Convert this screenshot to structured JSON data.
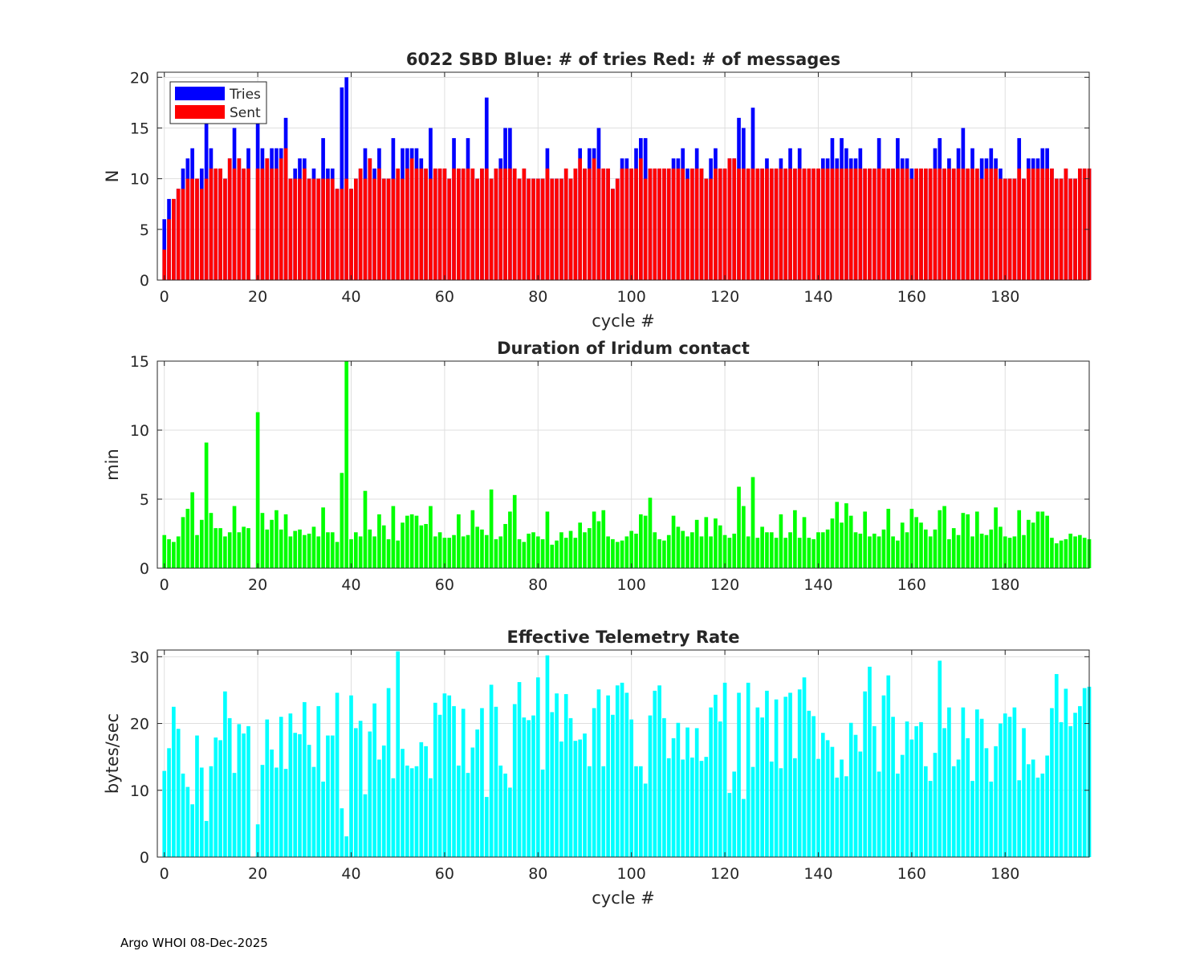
{
  "footer": "Argo WHOI 08-Dec-2025",
  "chart_data": [
    {
      "type": "bar",
      "title": "6022 SBD  Blue: # of tries   Red: # of messages",
      "xlabel": "cycle #",
      "ylabel": "N",
      "xlim": [
        -1.5,
        198
      ],
      "ylim": [
        0,
        20.5
      ],
      "xticks": [
        0,
        20,
        40,
        60,
        80,
        100,
        120,
        140,
        160,
        180
      ],
      "yticks": [
        0,
        5,
        10,
        15,
        20
      ],
      "grid": true,
      "legend": "top-left",
      "x_start": 0,
      "series": [
        {
          "name": "Tries",
          "color": "#0000ff",
          "values": [
            6,
            8,
            8,
            9,
            11,
            12,
            13,
            10,
            11,
            16,
            13,
            11,
            11,
            10,
            12,
            15,
            12,
            11,
            13,
            0,
            16,
            13,
            12,
            13,
            13,
            13,
            16,
            10,
            11,
            12,
            12,
            10,
            11,
            10,
            14,
            11,
            11,
            9,
            19,
            20,
            9,
            10,
            11,
            13,
            12,
            11,
            13,
            10,
            10,
            14,
            10,
            13,
            13,
            13,
            13,
            12,
            11,
            15,
            11,
            11,
            11,
            10,
            14,
            11,
            11,
            14,
            11,
            10,
            11,
            18,
            10,
            11,
            12,
            15,
            15,
            11,
            10,
            11,
            10,
            10,
            10,
            10,
            13,
            10,
            10,
            10,
            11,
            10,
            11,
            13,
            11,
            13,
            13,
            15,
            11,
            11,
            9,
            10,
            12,
            12,
            11,
            13,
            14,
            14,
            11,
            11,
            11,
            11,
            11,
            12,
            12,
            13,
            11,
            11,
            13,
            11,
            10,
            12,
            13,
            11,
            11,
            12,
            12,
            16,
            15,
            11,
            17,
            11,
            11,
            12,
            11,
            11,
            12,
            11,
            13,
            11,
            13,
            11,
            11,
            11,
            11,
            12,
            12,
            14,
            12,
            14,
            13,
            12,
            12,
            13,
            11,
            11,
            11,
            14,
            11,
            11,
            11,
            14,
            12,
            12,
            11,
            11,
            11,
            11,
            11,
            13,
            14,
            11,
            12,
            11,
            13,
            15,
            11,
            13,
            11,
            12,
            12,
            13,
            12,
            11,
            10,
            10,
            10,
            14,
            10,
            12,
            12,
            12,
            13,
            13,
            11,
            10,
            10,
            11,
            10,
            10,
            11,
            11,
            11
          ]
        },
        {
          "name": "Sent",
          "color": "#ff0000",
          "values": [
            3,
            6,
            8,
            9,
            9,
            10,
            10,
            10,
            9,
            10,
            11,
            11,
            11,
            10,
            12,
            11,
            12,
            11,
            11,
            0,
            11,
            11,
            12,
            11,
            11,
            12,
            13,
            10,
            10,
            10,
            11,
            10,
            10,
            10,
            10,
            10,
            10,
            9,
            9,
            10,
            9,
            10,
            11,
            10,
            12,
            10,
            11,
            10,
            10,
            10,
            11,
            10,
            11,
            12,
            11,
            11,
            11,
            10,
            11,
            11,
            11,
            10,
            11,
            11,
            11,
            11,
            11,
            10,
            11,
            11,
            10,
            11,
            11,
            11,
            11,
            11,
            10,
            11,
            10,
            10,
            10,
            10,
            11,
            10,
            10,
            10,
            11,
            10,
            11,
            12,
            11,
            11,
            12,
            11,
            11,
            11,
            9,
            10,
            11,
            11,
            11,
            11,
            12,
            10,
            11,
            11,
            11,
            11,
            11,
            11,
            11,
            11,
            10,
            11,
            11,
            11,
            10,
            10,
            11,
            11,
            11,
            12,
            12,
            11,
            11,
            11,
            11,
            11,
            11,
            11,
            11,
            11,
            11,
            11,
            11,
            11,
            11,
            11,
            11,
            11,
            11,
            11,
            11,
            11,
            11,
            11,
            11,
            11,
            11,
            11,
            11,
            11,
            11,
            11,
            11,
            11,
            11,
            11,
            11,
            11,
            10,
            11,
            11,
            11,
            11,
            11,
            11,
            11,
            11,
            11,
            11,
            11,
            11,
            11,
            11,
            10,
            11,
            11,
            11,
            10,
            10,
            10,
            10,
            11,
            10,
            11,
            11,
            11,
            11,
            11,
            11,
            10,
            10,
            11,
            10,
            10,
            11,
            11,
            11
          ]
        }
      ]
    },
    {
      "type": "bar",
      "title": "Duration of Iridum contact",
      "xlabel": "",
      "ylabel": "min",
      "xlim": [
        -1.5,
        198
      ],
      "ylim": [
        0,
        15
      ],
      "xticks": [
        0,
        20,
        40,
        60,
        80,
        100,
        120,
        140,
        160,
        180
      ],
      "yticks": [
        0,
        5,
        10,
        15
      ],
      "grid": true,
      "x_start": 0,
      "series": [
        {
          "name": "duration",
          "color": "#00ff00",
          "values": [
            2.4,
            2.1,
            1.9,
            2.3,
            3.7,
            4.3,
            5.5,
            2.4,
            3.5,
            9.1,
            4.0,
            2.9,
            2.9,
            2.3,
            2.6,
            4.5,
            2.6,
            3.0,
            2.9,
            0,
            11.3,
            4.0,
            2.8,
            3.5,
            4.2,
            2.8,
            3.9,
            2.3,
            2.7,
            2.8,
            2.4,
            2.5,
            3.0,
            2.3,
            4.4,
            2.6,
            2.6,
            1.9,
            6.9,
            15.0,
            2.1,
            2.6,
            2.3,
            5.6,
            2.8,
            2.3,
            3.9,
            3.1,
            2.1,
            4.5,
            2.0,
            3.3,
            3.8,
            3.9,
            3.8,
            3.1,
            3.2,
            4.5,
            2.3,
            2.6,
            2.2,
            2.2,
            2.4,
            3.9,
            2.3,
            2.4,
            4.2,
            3.0,
            2.8,
            2.4,
            5.7,
            2.1,
            2.3,
            3.2,
            4.1,
            5.3,
            2.1,
            1.9,
            2.5,
            2.6,
            2.3,
            2.1,
            4.1,
            1.7,
            2.0,
            2.6,
            2.2,
            2.7,
            2.2,
            3.3,
            2.6,
            2.9,
            4.1,
            3.4,
            4.2,
            2.3,
            2.1,
            1.9,
            2.0,
            2.3,
            2.7,
            2.5,
            3.9,
            3.8,
            5.1,
            2.6,
            2.1,
            2.0,
            2.4,
            3.8,
            3.0,
            2.7,
            2.3,
            2.6,
            3.5,
            2.3,
            3.7,
            2.3,
            3.6,
            3.1,
            2.4,
            2.2,
            2.5,
            5.9,
            4.5,
            2.3,
            6.6,
            2.2,
            3.0,
            2.6,
            2.6,
            2.2,
            3.9,
            2.2,
            2.6,
            4.2,
            2.2,
            3.7,
            2.2,
            2.1,
            2.6,
            2.6,
            2.8,
            3.6,
            4.8,
            3.3,
            4.7,
            3.8,
            2.6,
            2.5,
            4.1,
            2.3,
            2.5,
            2.3,
            2.8,
            4.3,
            2.3,
            2.0,
            3.3,
            2.6,
            4.3,
            3.7,
            3.3,
            2.8,
            2.3,
            2.8,
            4.2,
            4.5,
            2.1,
            2.9,
            2.4,
            4.0,
            3.9,
            2.3,
            4.1,
            2.5,
            2.4,
            2.8,
            4.4,
            3.0,
            2.3,
            2.2,
            2.3,
            4.2,
            2.4,
            3.5,
            3.3,
            4.1,
            4.1,
            3.8,
            2.2,
            1.8,
            2.0,
            2.1,
            2.5,
            2.3,
            2.4,
            2.2,
            2.1
          ]
        }
      ]
    },
    {
      "type": "bar",
      "title": "Effective Telemetry Rate",
      "xlabel": "cycle #",
      "ylabel": "bytes/sec",
      "xlim": [
        -1.5,
        198
      ],
      "ylim": [
        0,
        31
      ],
      "xticks": [
        0,
        20,
        40,
        60,
        80,
        100,
        120,
        140,
        160,
        180
      ],
      "yticks": [
        0,
        10,
        20,
        30
      ],
      "grid": true,
      "x_start": 0,
      "series": [
        {
          "name": "rate",
          "color": "#00ffff",
          "values": [
            12.9,
            16.3,
            22.5,
            19.2,
            12.5,
            10.5,
            7.9,
            18.2,
            13.4,
            5.4,
            13.6,
            17.9,
            17.5,
            24.8,
            20.8,
            12.6,
            19.9,
            18.5,
            19.6,
            0,
            4.9,
            13.8,
            20.6,
            16.1,
            13.4,
            21.0,
            13.2,
            21.5,
            18.6,
            18.4,
            23.2,
            16.8,
            13.5,
            22.6,
            11.3,
            18.2,
            18.2,
            24.6,
            7.3,
            3.1,
            24.2,
            19.3,
            20.4,
            9.4,
            18.8,
            23.0,
            14.6,
            16.7,
            25.3,
            11.8,
            30.8,
            16.2,
            13.7,
            13.3,
            13.6,
            17.2,
            16.6,
            11.8,
            23.1,
            21.3,
            24.5,
            24.2,
            22.6,
            13.7,
            22.2,
            12.6,
            16.4,
            19.1,
            22.3,
            9.0,
            25.8,
            22.5,
            13.7,
            12.5,
            10.4,
            22.9,
            26.2,
            20.9,
            20.5,
            21.2,
            26.9,
            13.1,
            30.2,
            21.7,
            24.5,
            17.3,
            24.4,
            20.8,
            17.4,
            17.6,
            18.5,
            13.6,
            22.3,
            25.1,
            13.6,
            24.2,
            21.3,
            25.7,
            26.1,
            24.6,
            20.6,
            13.6,
            13.6,
            11.0,
            21.2,
            24.9,
            25.7,
            20.8,
            14.8,
            17.8,
            20.1,
            14.6,
            19.4,
            14.9,
            19.3,
            14.4,
            15.0,
            22.4,
            24.3,
            20.3,
            26.1,
            9.6,
            12.8,
            24.6,
            8.7,
            26.1,
            13.5,
            22.4,
            20.9,
            24.9,
            14.3,
            23.6,
            13.3,
            24.0,
            24.6,
            14.8,
            25.1,
            26.9,
            21.9,
            21.1,
            14.7,
            18.6,
            17.5,
            16.5,
            11.9,
            14.6,
            12.1,
            20.1,
            18.3,
            15.8,
            24.8,
            28.5,
            19.6,
            12.8,
            24.2,
            27.2,
            21.0,
            12.5,
            15.3,
            20.3,
            17.6,
            19.6,
            20.2,
            13.6,
            11.4,
            15.6,
            29.4,
            19.3,
            22.4,
            13.6,
            14.6,
            22.4,
            17.8,
            11.4,
            22.1,
            20.7,
            16.3,
            11.3,
            16.6,
            20.0,
            21.5,
            21.0,
            22.4,
            11.5,
            19.3,
            13.9,
            14.6,
            11.9,
            12.5,
            15.2,
            22.3,
            27.4,
            20.2,
            25.2,
            19.6,
            21.6,
            22.6,
            25.3,
            25.5
          ]
        }
      ]
    }
  ]
}
